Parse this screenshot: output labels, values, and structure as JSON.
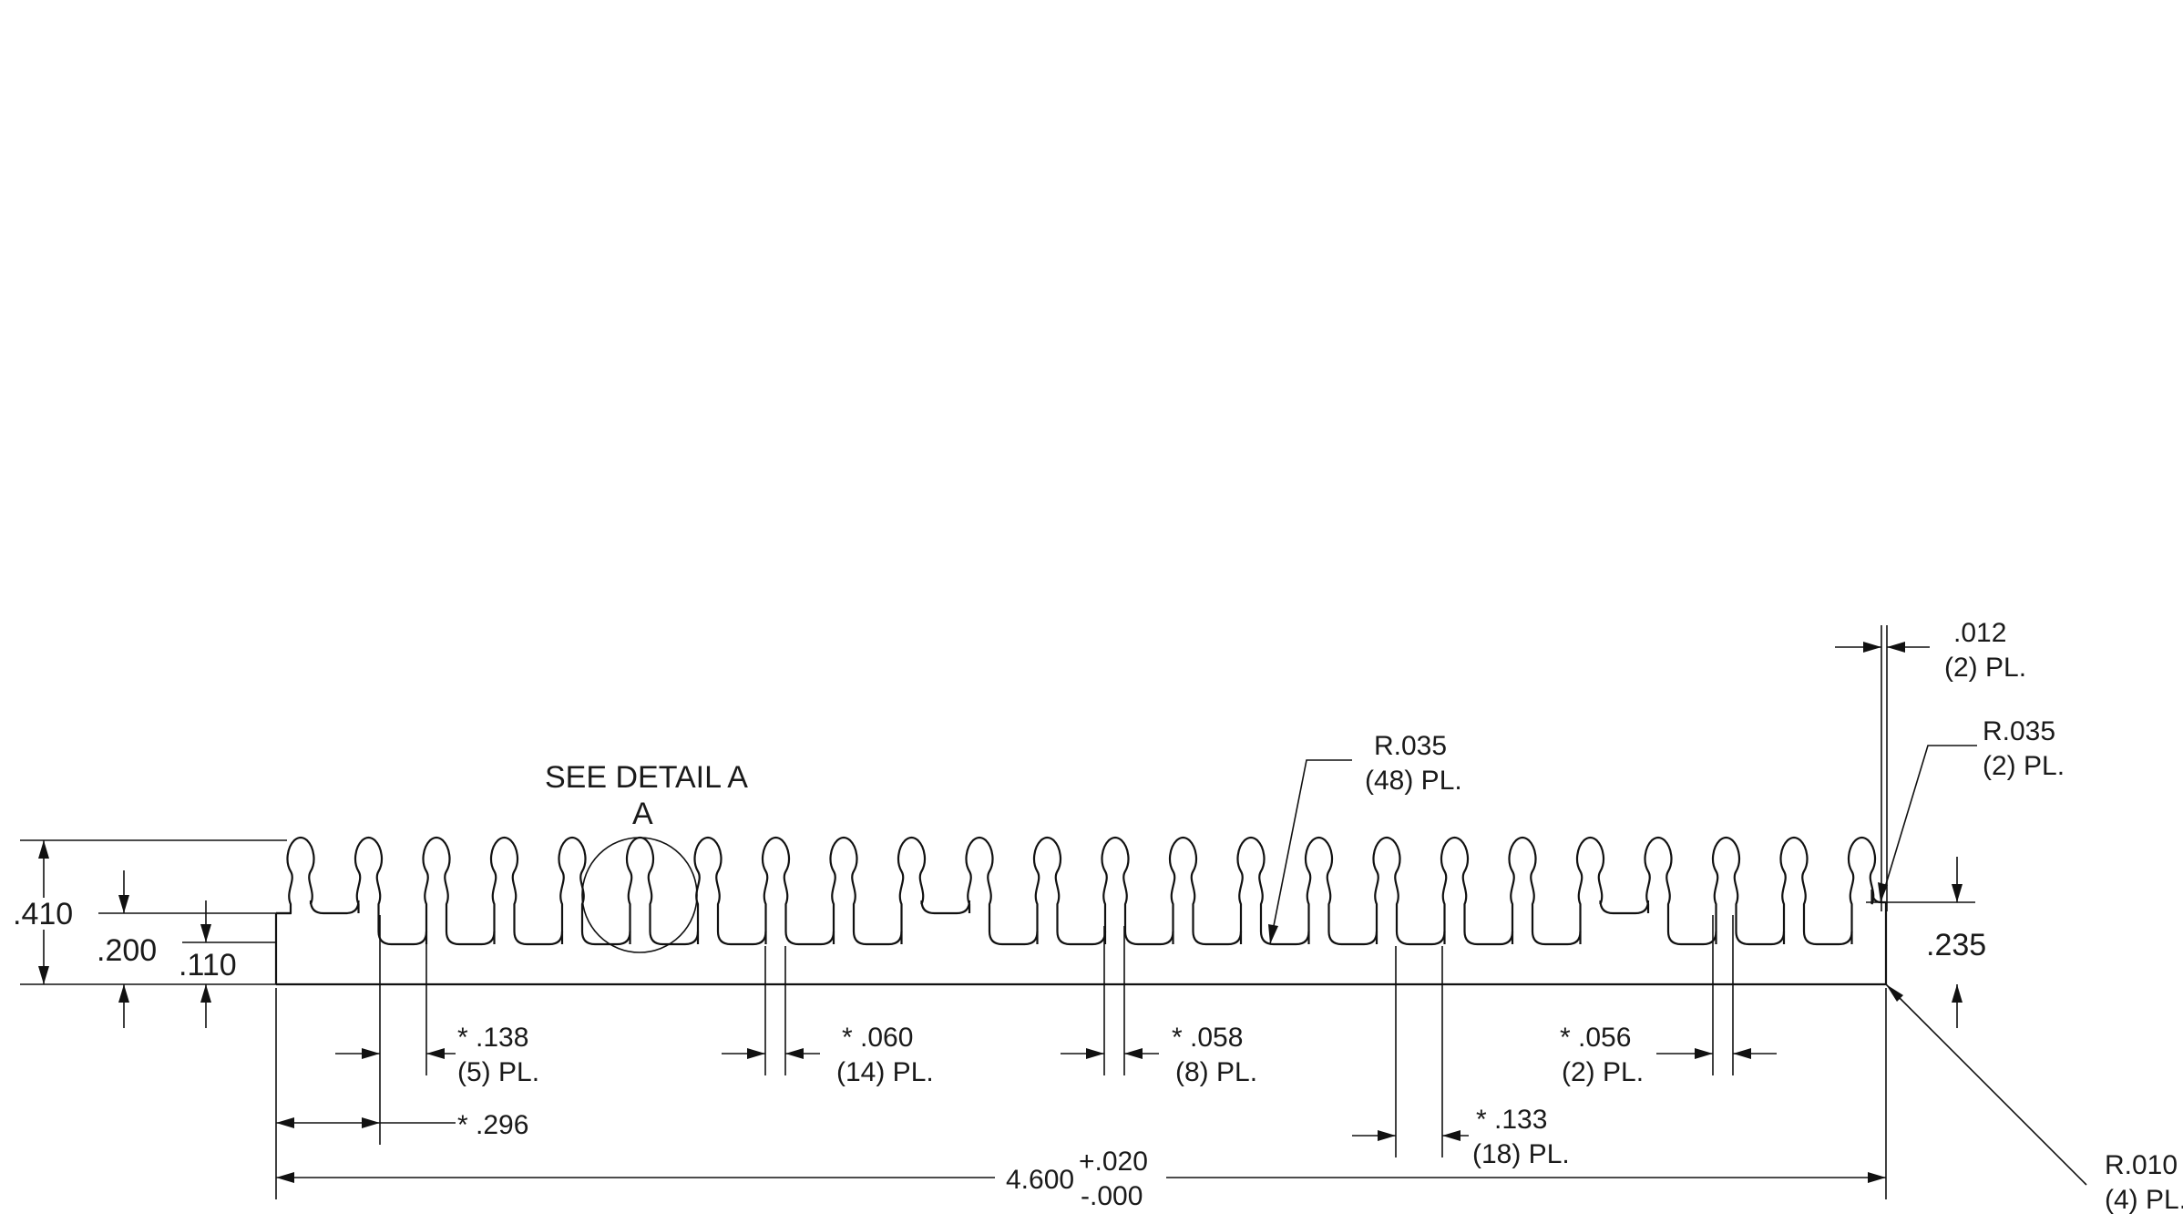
{
  "drawing": {
    "detail_callout": "SEE DETAIL A",
    "detail_letter": "A",
    "overall_height": ".410",
    "mid_height": ".200",
    "base_thickness": ".110",
    "right_height": ".235",
    "pitch_1": "* .138",
    "pitch_1_count": "(5) PL.",
    "offset": "* .296",
    "gap_1": "* .060",
    "gap_1_count": "(14) PL.",
    "gap_2": "* .058",
    "gap_2_count": "(8) PL.",
    "gap_3": "* .056",
    "gap_3_count": "(2) PL.",
    "pitch_2": "* .133",
    "pitch_2_count": "(18) PL.",
    "overall_length": "4.600",
    "tol_plus": "+.020",
    "tol_minus": "-.000",
    "root_radius": "R.035",
    "root_radius_count": "(48) PL.",
    "end_radius": "R.035",
    "end_radius_count": "(2) PL.",
    "end_width": ".012",
    "end_width_count": "(2) PL.",
    "corner_radius": "R.010",
    "corner_radius_count": "(4) PL."
  }
}
